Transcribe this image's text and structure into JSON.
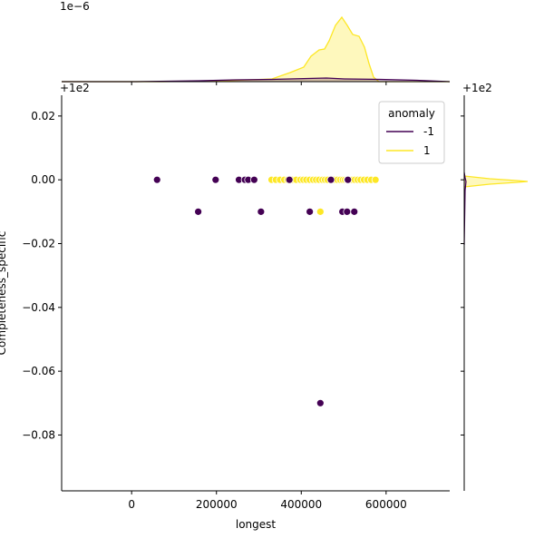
{
  "chart_data": {
    "type": "scatter",
    "title": "",
    "xlabel": "longest",
    "ylabel": "Completeness_specific",
    "x_ticks": [
      "0",
      "200000",
      "400000",
      "600000"
    ],
    "x_tick_values": [
      0,
      200000,
      400000,
      600000
    ],
    "y_ticks": [
      "0.02",
      "0.00",
      "−0.02",
      "−0.04",
      "−0.06",
      "−0.08"
    ],
    "y_tick_values": [
      0.02,
      0.0,
      -0.02,
      -0.04,
      -0.06,
      -0.08
    ],
    "y_offset_label": "+1e2",
    "right_offset_label": "+1e2",
    "top_scale_label": "1e−6",
    "xlim": [
      -165000,
      750000
    ],
    "ylim": [
      -0.0975,
      0.0265
    ],
    "legend": {
      "title": "anomaly",
      "position": "top-right",
      "entries": [
        {
          "label": "-1",
          "color": "#440154"
        },
        {
          "label": "1",
          "color": "#fde725"
        }
      ]
    },
    "series": [
      {
        "name": "-1",
        "color": "#440154",
        "points": [
          [
            60000,
            0.0
          ],
          [
            198000,
            0.0
          ],
          [
            253000,
            0.0
          ],
          [
            267000,
            0.0
          ],
          [
            275000,
            0.0
          ],
          [
            289000,
            0.0
          ],
          [
            372000,
            0.0
          ],
          [
            470000,
            0.0
          ],
          [
            510000,
            0.0
          ],
          [
            157000,
            -0.01
          ],
          [
            305000,
            -0.01
          ],
          [
            420000,
            -0.01
          ],
          [
            497000,
            -0.01
          ],
          [
            508000,
            -0.01
          ],
          [
            525000,
            -0.01
          ],
          [
            445000,
            -0.07
          ]
        ]
      },
      {
        "name": "1",
        "color": "#fde725",
        "points": [
          [
            330000,
            0.0
          ],
          [
            340000,
            0.0
          ],
          [
            350000,
            0.0
          ],
          [
            360000,
            0.0
          ],
          [
            368000,
            0.0
          ],
          [
            378000,
            0.0
          ],
          [
            388000,
            0.0
          ],
          [
            398000,
            0.0
          ],
          [
            405000,
            0.0
          ],
          [
            412000,
            0.0
          ],
          [
            420000,
            0.0
          ],
          [
            428000,
            0.0
          ],
          [
            435000,
            0.0
          ],
          [
            442000,
            0.0
          ],
          [
            450000,
            0.0
          ],
          [
            456000,
            0.0
          ],
          [
            462000,
            0.0
          ],
          [
            478000,
            0.0
          ],
          [
            485000,
            0.0
          ],
          [
            492000,
            0.0
          ],
          [
            498000,
            0.0
          ],
          [
            503000,
            0.0
          ],
          [
            508000,
            0.0
          ],
          [
            514000,
            0.0
          ],
          [
            520000,
            0.0
          ],
          [
            526000,
            0.0
          ],
          [
            533000,
            0.0
          ],
          [
            540000,
            0.0
          ],
          [
            548000,
            0.0
          ],
          [
            556000,
            0.0
          ],
          [
            565000,
            0.0
          ],
          [
            575000,
            0.0
          ],
          [
            445000,
            -0.01
          ]
        ]
      }
    ]
  }
}
